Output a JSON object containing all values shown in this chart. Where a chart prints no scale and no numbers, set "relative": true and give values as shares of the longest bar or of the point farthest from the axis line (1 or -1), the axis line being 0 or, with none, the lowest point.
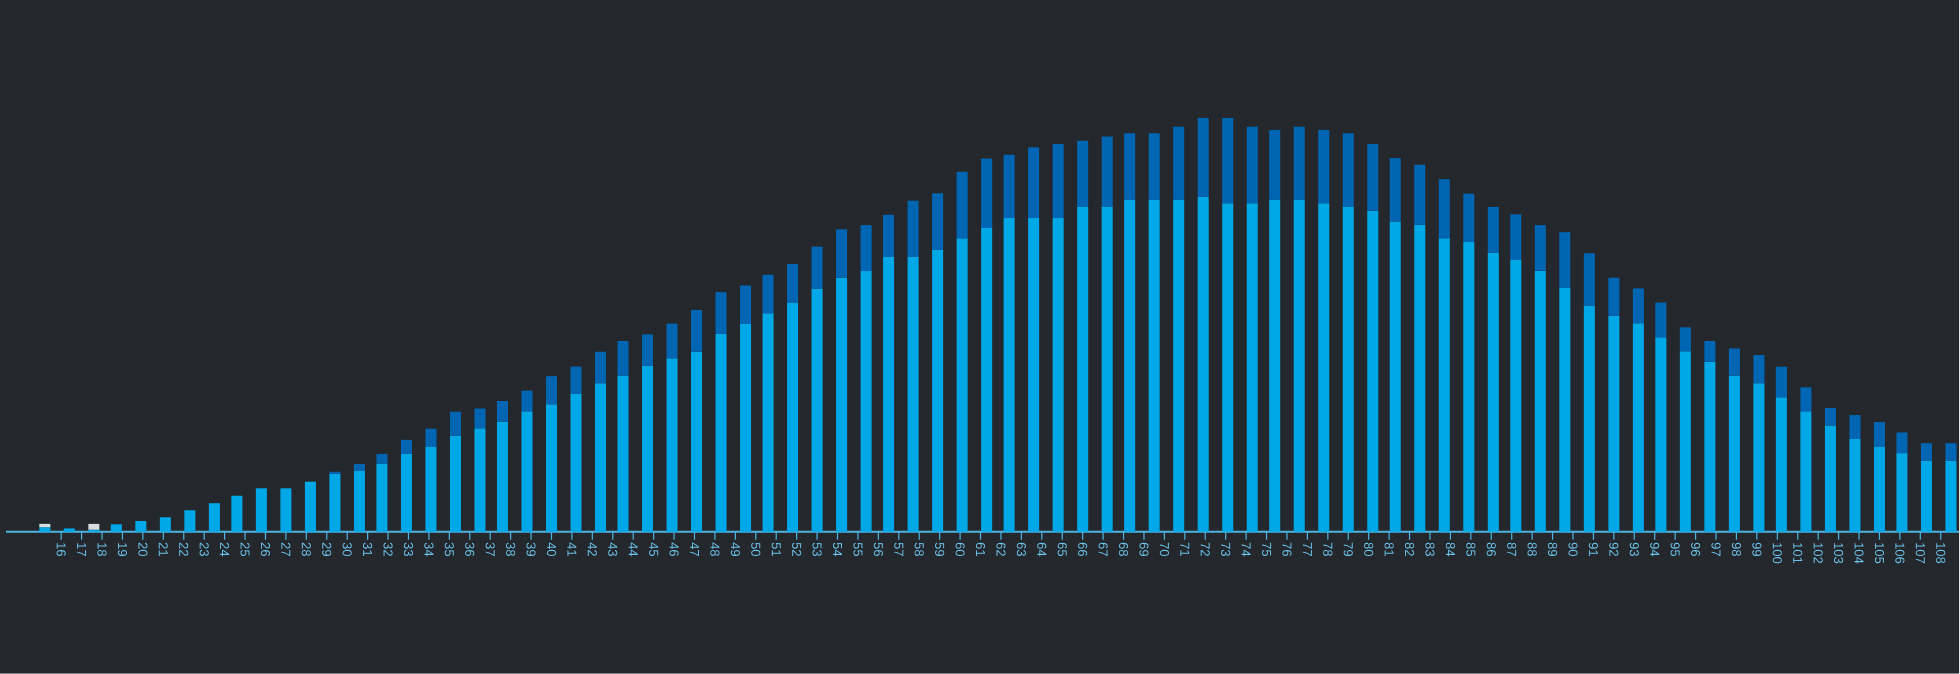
{
  "chart_data": {
    "type": "bar",
    "stacked": true,
    "relative": true,
    "x": [
      15.2,
      16.4,
      17.6,
      18.7,
      19.9,
      21.1,
      22.3,
      23.5,
      24.6,
      25.8,
      27.0,
      28.2,
      29.4,
      30.6,
      31.7,
      32.9,
      34.1,
      35.3,
      36.5,
      37.6,
      38.8,
      40.0,
      41.2,
      42.4,
      43.5,
      44.7,
      45.9,
      47.1,
      48.3,
      49.5,
      50.6,
      51.8,
      53.0,
      54.2,
      55.4,
      56.5,
      57.7,
      58.9,
      60.1,
      61.3,
      62.4,
      63.6,
      64.8,
      66.0,
      67.2,
      68.3,
      69.5,
      70.7,
      71.9,
      73.1,
      74.3,
      75.4,
      76.6,
      77.8,
      79.0,
      80.2,
      81.3,
      82.5,
      83.7,
      84.9,
      86.1,
      87.2,
      88.4,
      89.6,
      90.8,
      92.0,
      93.2,
      94.3,
      95.5,
      96.7,
      97.9,
      99.1,
      100.2,
      101.4,
      102.6,
      103.8,
      105.0,
      106.1,
      107.3,
      108.5
    ],
    "xlim": [
      13.3,
      108.9
    ],
    "xticks": [
      16,
      17,
      18,
      19,
      20,
      21,
      22,
      23,
      24,
      25,
      26,
      27,
      28,
      29,
      30,
      31,
      32,
      33,
      34,
      35,
      36,
      37,
      38,
      39,
      40,
      41,
      42,
      43,
      44,
      45,
      46,
      47,
      48,
      49,
      50,
      51,
      52,
      53,
      54,
      55,
      56,
      57,
      58,
      59,
      60,
      61,
      62,
      63,
      64,
      65,
      66,
      67,
      68,
      69,
      70,
      71,
      72,
      73,
      74,
      75,
      76,
      77,
      78,
      79,
      80,
      81,
      82,
      83,
      84,
      85,
      86,
      87,
      88,
      89,
      90,
      91,
      92,
      93,
      94,
      95,
      96,
      97,
      98,
      99,
      100,
      101,
      102,
      103,
      104,
      105,
      106,
      107,
      108
    ],
    "series": [
      {
        "color": "#00a8e8",
        "values": [
          0.011,
          0.008,
          0.005,
          0.018,
          0.026,
          0.035,
          0.052,
          0.069,
          0.087,
          0.105,
          0.105,
          0.121,
          0.14,
          0.148,
          0.164,
          0.188,
          0.206,
          0.232,
          0.25,
          0.266,
          0.291,
          0.308,
          0.333,
          0.359,
          0.377,
          0.401,
          0.419,
          0.435,
          0.478,
          0.502,
          0.528,
          0.554,
          0.588,
          0.614,
          0.63,
          0.665,
          0.665,
          0.681,
          0.709,
          0.734,
          0.758,
          0.758,
          0.758,
          0.786,
          0.786,
          0.802,
          0.802,
          0.802,
          0.81,
          0.794,
          0.794,
          0.802,
          0.802,
          0.794,
          0.786,
          0.776,
          0.75,
          0.742,
          0.709,
          0.7,
          0.675,
          0.657,
          0.631,
          0.589,
          0.546,
          0.522,
          0.504,
          0.47,
          0.436,
          0.411,
          0.377,
          0.359,
          0.325,
          0.291,
          0.257,
          0.224,
          0.206,
          0.19,
          0.172,
          0.172
        ]
      },
      {
        "color": "#0066b3",
        "values": [
          null,
          null,
          null,
          null,
          null,
          null,
          null,
          null,
          null,
          null,
          null,
          null,
          0.005,
          0.016,
          0.024,
          0.034,
          0.043,
          0.058,
          0.048,
          0.05,
          0.05,
          0.068,
          0.066,
          0.076,
          0.084,
          0.076,
          0.084,
          0.101,
          0.101,
          0.093,
          0.093,
          0.093,
          0.101,
          0.117,
          0.111,
          0.101,
          0.135,
          0.137,
          0.161,
          0.168,
          0.153,
          0.171,
          0.179,
          0.159,
          0.169,
          0.161,
          0.161,
          0.177,
          0.19,
          0.206,
          0.185,
          0.169,
          0.177,
          0.177,
          0.177,
          0.161,
          0.153,
          0.145,
          0.143,
          0.117,
          0.11,
          0.11,
          0.11,
          0.135,
          0.127,
          0.092,
          0.084,
          0.084,
          0.058,
          0.05,
          0.066,
          0.068,
          0.074,
          0.058,
          0.042,
          0.058,
          0.059,
          0.05,
          0.042,
          0.042
        ]
      },
      {
        "color": "#d8dde2",
        "values": [
          0.008,
          null,
          0.014,
          null,
          null,
          null,
          null,
          null,
          null,
          null,
          null,
          null,
          null,
          null,
          null,
          null,
          null,
          null,
          null,
          null,
          null,
          null,
          null,
          null,
          null,
          null,
          null,
          null,
          null,
          null,
          null,
          null,
          null,
          null,
          null,
          null,
          null,
          null,
          null,
          null,
          null,
          null,
          null,
          null,
          null,
          null,
          null,
          null,
          null,
          null,
          null,
          null,
          null,
          null,
          null,
          null,
          null,
          null,
          null,
          null,
          null,
          null,
          null,
          null,
          null,
          null,
          null,
          null,
          null,
          null,
          null,
          null,
          null,
          null,
          null,
          null,
          null,
          null,
          null,
          null
        ]
      }
    ]
  }
}
